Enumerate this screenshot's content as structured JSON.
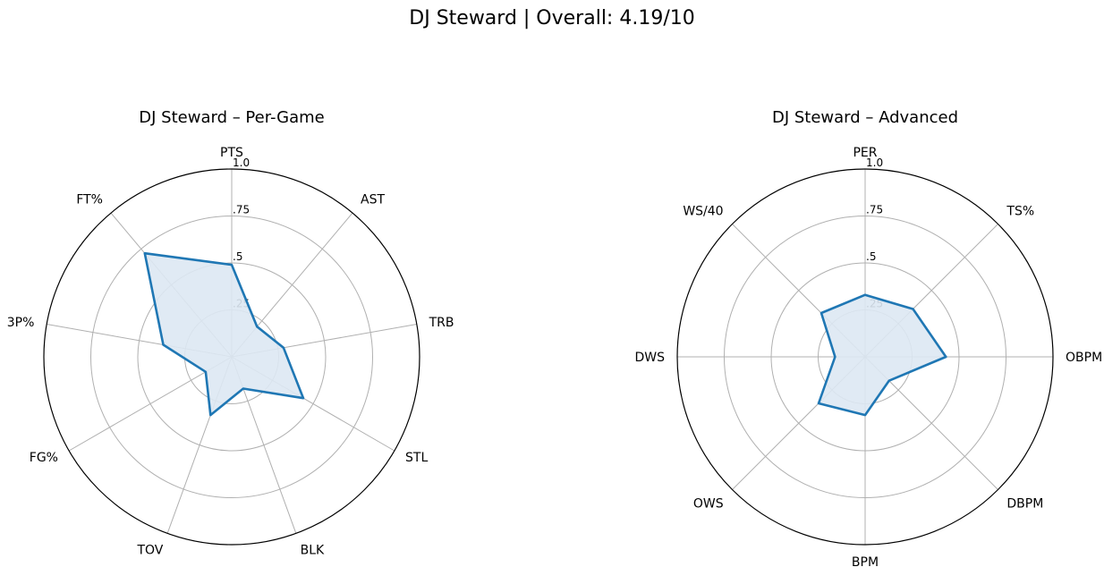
{
  "figure": {
    "title": "DJ Steward | Overall: 4.19/10"
  },
  "chart_data": [
    {
      "type": "radar",
      "title": "DJ Steward – Per-Game",
      "axes": [
        "PTS",
        "AST",
        "TRB",
        "STL",
        "BLK",
        "TOV",
        "FG%",
        "3P%",
        "FT%"
      ],
      "values": [
        0.49,
        0.21,
        0.28,
        0.44,
        0.18,
        0.33,
        0.16,
        0.37,
        0.72
      ],
      "radial_ticks": [
        0.25,
        0.5,
        0.75,
        1.0
      ],
      "radial_tick_labels": [
        ".25",
        ".5",
        ".75",
        "1.0"
      ],
      "rlim": [
        0,
        1
      ],
      "grid": true,
      "colors": {
        "line": "#1f77b4",
        "fill": "#dde8f3",
        "grid": "#b0b0b0",
        "frame": "#000000"
      }
    },
    {
      "type": "radar",
      "title": "DJ Steward – Advanced",
      "axes": [
        "PER",
        "TS%",
        "OBPM",
        "DBPM",
        "BPM",
        "OWS",
        "DWS",
        "WS/40"
      ],
      "values": [
        0.33,
        0.36,
        0.43,
        0.18,
        0.31,
        0.35,
        0.16,
        0.33
      ],
      "radial_ticks": [
        0.25,
        0.5,
        0.75,
        1.0
      ],
      "radial_tick_labels": [
        ".25",
        ".5",
        ".75",
        "1.0"
      ],
      "rlim": [
        0,
        1
      ],
      "grid": true,
      "colors": {
        "line": "#1f77b4",
        "fill": "#dde8f3",
        "grid": "#b0b0b0",
        "frame": "#000000"
      }
    }
  ]
}
